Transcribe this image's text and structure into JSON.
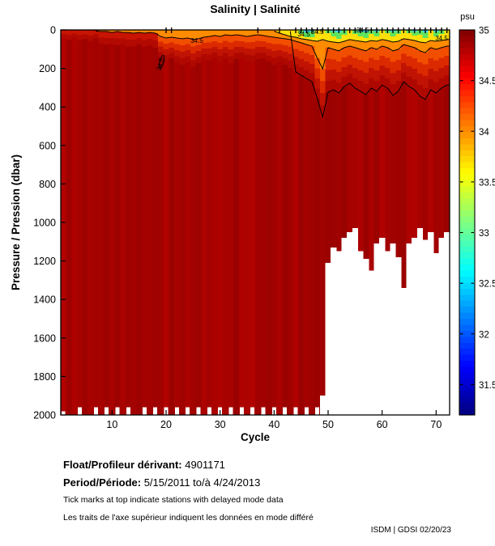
{
  "chart_data": {
    "type": "heatmap",
    "title": "Salinity | Salinité",
    "xlabel": "Cycle",
    "ylabel": "Pressure / Pression (dbar)",
    "n_cycles": 72,
    "x_range": [
      0.5,
      72.5
    ],
    "y_range": [
      0,
      2000
    ],
    "x_ticks": [
      10,
      20,
      30,
      40,
      50,
      60,
      70
    ],
    "y_ticks": [
      0,
      200,
      400,
      600,
      800,
      1000,
      1200,
      1400,
      1600,
      1800,
      2000
    ],
    "colorbar": {
      "label": "psu",
      "vmin": 31.2,
      "vmax": 35,
      "ticks": [
        35,
        34.5,
        34,
        33.5,
        33,
        32.5,
        32,
        31.5
      ],
      "tick_labels": [
        "35",
        "34.5",
        "34",
        "33.5",
        "33",
        "32.5",
        "32",
        "31.5"
      ],
      "colormap": "jet"
    },
    "palette": {
      "base_red": "#A50200",
      "red_fade": [
        "#F24E00",
        "#DC2A00",
        "#C01303",
        "#AF0801"
      ],
      "red_fade_dim": [
        "#C81403",
        "#B20901"
      ],
      "orange": "#FF8C00",
      "yellow": "#FFE00A",
      "green": "#5FE35F",
      "cyan": "#3FD4F0",
      "missing": "#FFFFFF",
      "contour": "#000000"
    },
    "bands": {
      "comment": "cumulative lower edge (dbar) of each salinity colour band per cycle 1..72",
      "cyan_end": [
        0,
        0,
        0,
        0,
        0,
        0,
        0,
        0,
        0,
        0,
        0,
        0,
        0,
        0,
        0,
        0,
        0,
        0,
        0,
        0,
        0,
        0,
        0,
        0,
        0,
        0,
        0,
        0,
        0,
        0,
        0,
        0,
        0,
        0,
        0,
        0,
        0,
        0,
        0,
        0,
        0,
        0,
        0,
        0,
        0,
        13,
        8,
        0,
        0,
        0,
        8,
        13,
        0,
        0,
        0,
        8,
        13,
        0,
        8,
        0,
        0,
        8,
        0,
        0,
        0,
        8,
        0,
        13,
        0,
        8,
        0,
        0
      ],
      "green_end": [
        0,
        0,
        0,
        0,
        0,
        0,
        0,
        0,
        0,
        0,
        0,
        0,
        0,
        0,
        0,
        0,
        0,
        0,
        0,
        0,
        0,
        0,
        0,
        0,
        0,
        0,
        0,
        0,
        0,
        0,
        0,
        0,
        0,
        0,
        0,
        0,
        0,
        0,
        0,
        0,
        0,
        0,
        0,
        0,
        21,
        38,
        38,
        0,
        0,
        17,
        34,
        46,
        25,
        0,
        21,
        34,
        42,
        21,
        34,
        0,
        17,
        34,
        21,
        0,
        17,
        29,
        25,
        42,
        0,
        34,
        21,
        0
      ],
      "yellow_end": [
        0,
        0,
        0,
        0,
        0,
        0,
        0,
        0,
        0,
        0,
        0,
        0,
        0,
        0,
        0,
        0,
        0,
        0,
        0,
        0,
        0,
        0,
        0,
        0,
        0,
        0,
        0,
        0,
        0,
        0,
        0,
        0,
        0,
        0,
        0,
        0,
        0,
        0,
        0,
        0,
        17,
        25,
        34,
        38,
        46,
        50,
        55,
        59,
        50,
        59,
        63,
        67,
        59,
        50,
        55,
        59,
        63,
        55,
        59,
        50,
        55,
        63,
        59,
        46,
        50,
        55,
        63,
        67,
        55,
        59,
        55,
        50
      ],
      "orange_end": [
        0,
        0,
        0,
        0,
        0,
        0,
        0,
        8,
        8,
        13,
        8,
        13,
        13,
        17,
        13,
        17,
        13,
        17,
        34,
        42,
        38,
        42,
        46,
        42,
        50,
        46,
        38,
        34,
        29,
        34,
        25,
        29,
        25,
        29,
        34,
        29,
        25,
        29,
        34,
        38,
        42,
        46,
        50,
        59,
        67,
        76,
        84,
        147,
        202,
        92,
        101,
        109,
        92,
        84,
        92,
        101,
        109,
        92,
        101,
        84,
        92,
        109,
        101,
        76,
        84,
        92,
        109,
        118,
        92,
        101,
        92,
        84
      ],
      "red_end": [
        42,
        50,
        38,
        55,
        46,
        59,
        42,
        71,
        76,
        71,
        80,
        76,
        88,
        84,
        76,
        88,
        80,
        92,
        139,
        160,
        147,
        168,
        181,
        168,
        193,
        172,
        155,
        160,
        147,
        168,
        151,
        172,
        151,
        147,
        160,
        168,
        151,
        147,
        164,
        181,
        168,
        181,
        197,
        218,
        235,
        252,
        269,
        357,
        454,
        323,
        311,
        328,
        294,
        277,
        302,
        319,
        336,
        302,
        319,
        286,
        302,
        340,
        319,
        269,
        294,
        311,
        344,
        361,
        311,
        328,
        302,
        286
      ]
    },
    "missing_top": {
      "49": 1900,
      "50": 1210,
      "51": 1130,
      "52": 1150,
      "53": 1080,
      "54": 1050,
      "55": 1030,
      "56": 1150,
      "57": 1190,
      "58": 1250,
      "59": 1110,
      "60": 1080,
      "61": 1150,
      "62": 1110,
      "63": 1180,
      "64": 1340,
      "65": 1110,
      "66": 1080,
      "67": 1030,
      "68": 1090,
      "69": 1050,
      "70": 1160,
      "71": 1080,
      "72": 1050
    },
    "shallow_cycles": [
      4,
      7,
      9,
      11,
      13,
      16,
      18,
      20,
      22,
      24,
      26,
      28,
      30,
      32,
      34,
      36,
      38,
      40,
      42,
      44,
      46,
      48
    ],
    "shallow_top": 1960,
    "first_notch": {
      "cycle": 1,
      "top": 1981
    },
    "delayed_mode_cycles": [
      20,
      21,
      37,
      41,
      44,
      45,
      46,
      47,
      48,
      49,
      50,
      51,
      52,
      53,
      54,
      55,
      56,
      57,
      58,
      59,
      60,
      61,
      62,
      63,
      64,
      65,
      66,
      67,
      68,
      69,
      70,
      71,
      72
    ],
    "contour_labels": [
      {
        "cycle": 25.7,
        "dbar": 67,
        "text": "34.5",
        "rot": 0
      },
      {
        "cycle": 19.3,
        "dbar": 181,
        "text": "34.5",
        "rot": -75
      },
      {
        "cycle": 45.5,
        "dbar": 34,
        "text": "34.5",
        "rot": 0
      },
      {
        "cycle": 48.0,
        "dbar": 21,
        "text": "34.5",
        "rot": 0
      },
      {
        "cycle": 56.4,
        "dbar": 13,
        "text": "34.5",
        "rot": 0
      },
      {
        "cycle": 71.0,
        "dbar": 55,
        "text": "34.5",
        "rot": 0
      }
    ]
  },
  "footer": {
    "float_label": "Float/Profileur dérivant:",
    "float_value": "4901171",
    "period_label": "Period/Période:",
    "period_value": "5/15/2011  to/à  4/24/2013",
    "note_en": "Tick marks at top indicate stations with delayed mode data",
    "note_fr": "Les traits de l'axe supérieur indiquent les données en mode différé",
    "credit": "ISDM | GDSI  02/20/23"
  }
}
